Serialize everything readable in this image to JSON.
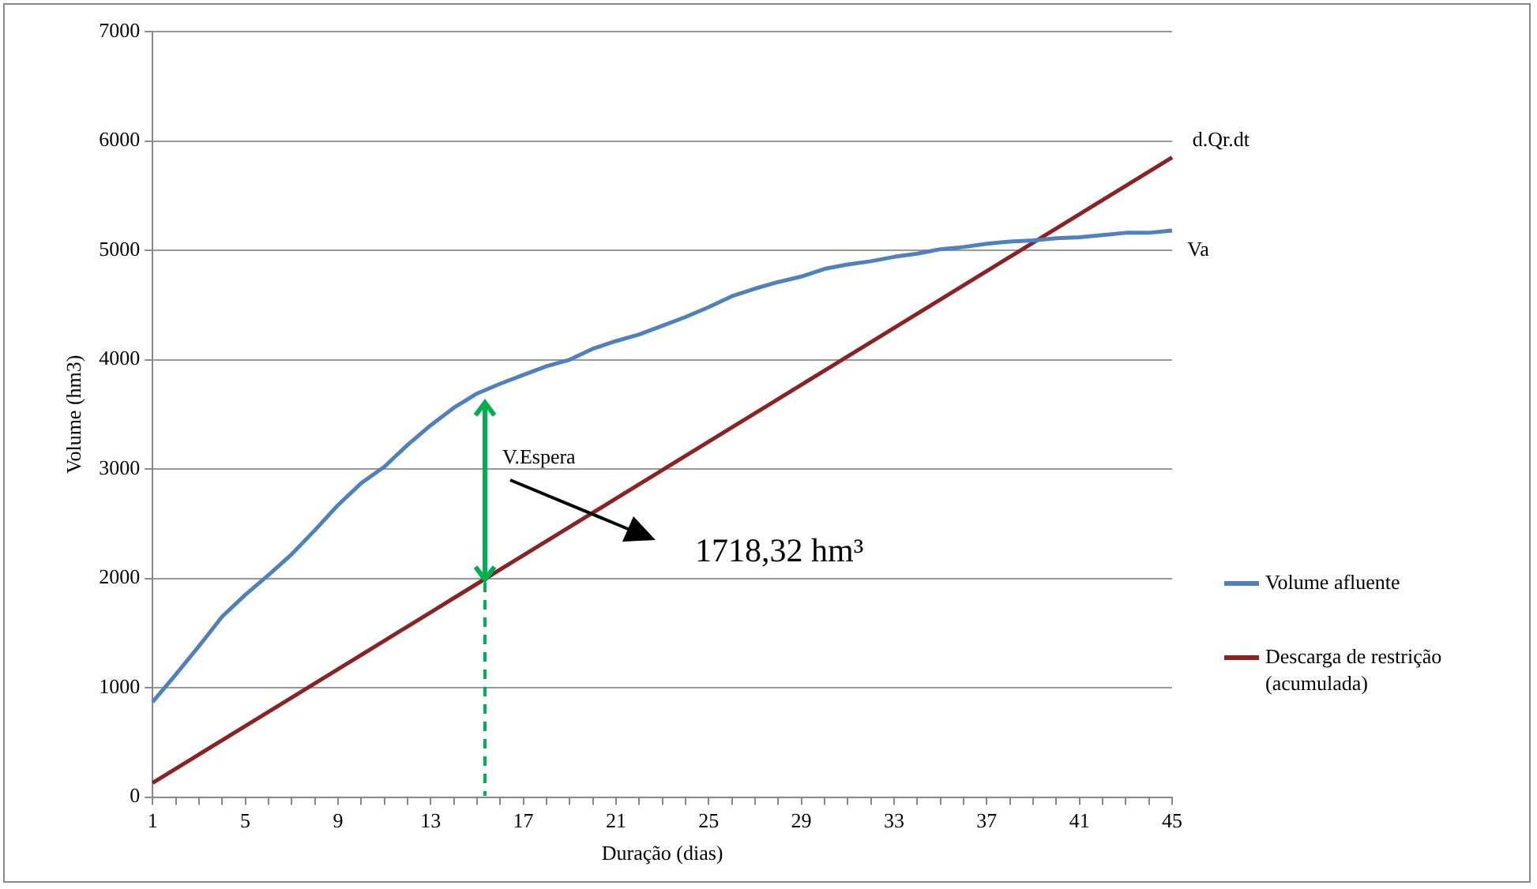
{
  "chart_data": {
    "type": "line",
    "xlabel": "Duração (dias)",
    "ylabel": "Volume (hm3)",
    "categories": [
      "1",
      null,
      null,
      null,
      "5",
      null,
      null,
      null,
      "9",
      null,
      null,
      null,
      "13",
      null,
      null,
      null,
      "17",
      null,
      null,
      null,
      "21",
      null,
      null,
      null,
      "25",
      null,
      null,
      null,
      "29",
      null,
      null,
      null,
      "33",
      null,
      null,
      null,
      "37",
      null,
      null,
      null,
      "41",
      null,
      null,
      null,
      "45"
    ],
    "series": [
      {
        "name": "Volume afluente",
        "color": "#4f81bd",
        "values": [
          870,
          1120,
          1380,
          1650,
          1850,
          2030,
          2220,
          2440,
          2670,
          2870,
          3020,
          3220,
          3400,
          3560,
          3690,
          3780,
          3860,
          3940,
          4000,
          4100,
          4170,
          4230,
          4310,
          4390,
          4480,
          4580,
          4650,
          4710,
          4760,
          4830,
          4870,
          4900,
          4940,
          4970,
          5010,
          5030,
          5060,
          5080,
          5090,
          5110,
          5120,
          5140,
          5160,
          5160,
          5180
        ]
      },
      {
        "name": "Descarga de restrição (acumulada)",
        "color": "#8b2323",
        "values": [
          130,
          260,
          390,
          520,
          650,
          780,
          910,
          1040,
          1170,
          1300,
          1430,
          1560,
          1690,
          1820,
          1950,
          2080,
          2210,
          2340,
          2470,
          2600,
          2730,
          2860,
          2990,
          3120,
          3250,
          3380,
          3510,
          3640,
          3770,
          3900,
          4030,
          4160,
          4290,
          4420,
          4550,
          4680,
          4810,
          4940,
          5070,
          5200,
          5330,
          5460,
          5590,
          5720,
          5850
        ]
      }
    ],
    "ylim": [
      0,
      7000
    ],
    "yticks": [
      0,
      1000,
      2000,
      3000,
      4000,
      5000,
      6000,
      7000
    ],
    "grid": "y",
    "legend": "right",
    "marker": "none",
    "line_style": "solid",
    "annotations": [
      "d.Qr.dt",
      "Va",
      "V.Espera",
      "1718,32 hm³"
    ]
  }
}
